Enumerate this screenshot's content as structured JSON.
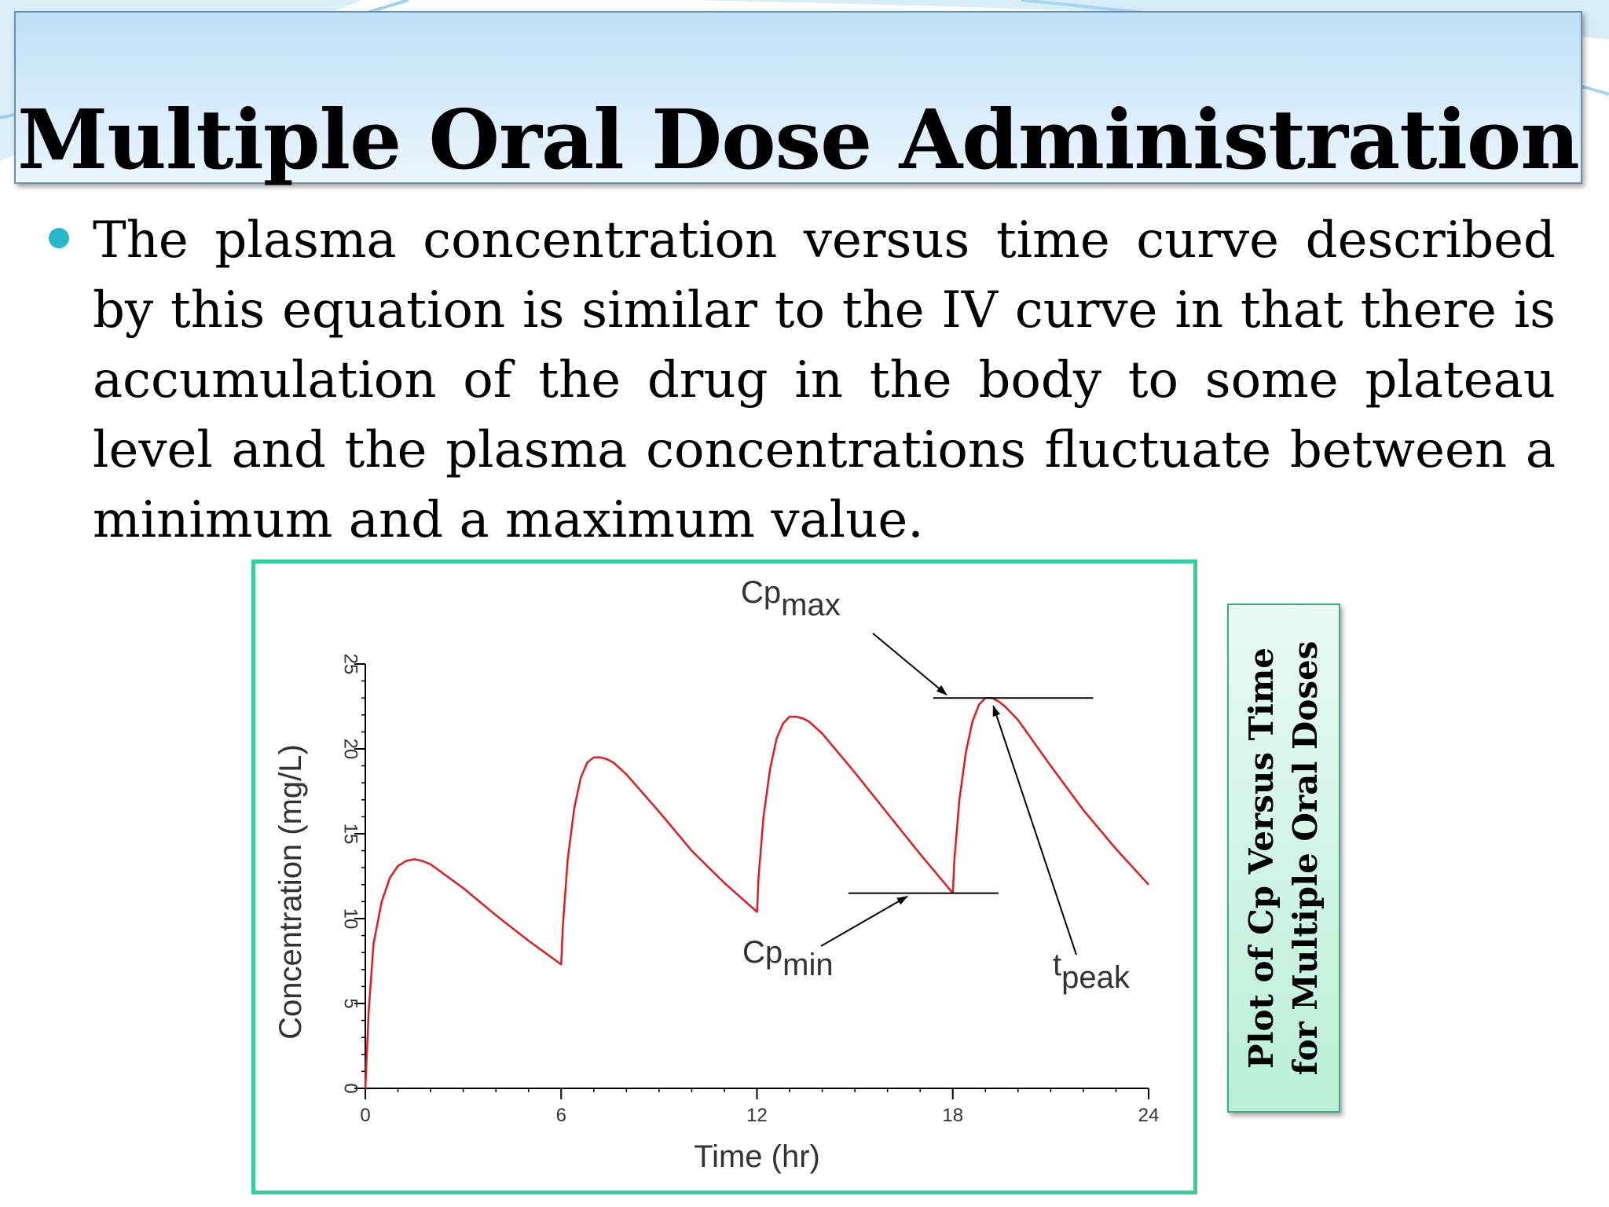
{
  "slide": {
    "title": "Multiple Oral Dose Administration",
    "bullet": "The plasma concentration versus time curve described by this equation is similar to the IV curve in that there is accumulation of the drug in the body to some plateau level and the plasma concentrations fluctuate between a minimum and a maximum value.",
    "caption_line1": "Plot of Cp Versus Time",
    "caption_line2": "for Multiple Oral Doses",
    "colors": {
      "bullet": "#27b9c9",
      "frame": "#2fd1a2",
      "curve": "#e41a1c"
    }
  },
  "chart_data": {
    "type": "line",
    "xlabel": "Time (hr)",
    "ylabel": "Concentration (mg/L)",
    "xlim": [
      0,
      24
    ],
    "ylim": [
      0,
      25
    ],
    "xticks": [
      0,
      6,
      12,
      18,
      24
    ],
    "yticks": [
      0,
      5,
      10,
      15,
      20,
      25
    ],
    "series": [
      {
        "x": [
          0,
          0.1,
          0.25,
          0.5,
          0.75,
          1.0,
          1.25,
          1.5,
          1.75,
          2,
          3,
          4,
          5,
          6,
          6.05,
          6.2,
          6.4,
          6.6,
          6.8,
          7.0,
          7.2,
          7.4,
          7.6,
          8,
          9,
          10,
          11,
          12,
          12.05,
          12.2,
          12.4,
          12.6,
          12.8,
          13.0,
          13.2,
          13.4,
          13.6,
          14,
          15,
          16,
          17,
          18,
          18.05,
          18.2,
          18.4,
          18.6,
          18.8,
          19.0,
          19.2,
          19.4,
          19.6,
          20,
          21,
          22,
          23,
          24
        ],
        "y": [
          0,
          4.5,
          8.5,
          11.0,
          12.4,
          13.1,
          13.4,
          13.5,
          13.4,
          13.2,
          11.8,
          10.2,
          8.7,
          7.3,
          9.5,
          13.5,
          16.5,
          18.3,
          19.2,
          19.5,
          19.5,
          19.4,
          19.2,
          18.5,
          16.3,
          14.0,
          12.1,
          10.4,
          12.5,
          16.0,
          18.8,
          20.6,
          21.5,
          21.9,
          21.9,
          21.8,
          21.6,
          20.9,
          18.6,
          16.2,
          13.8,
          11.5,
          13.5,
          17.0,
          19.8,
          21.6,
          22.6,
          23.0,
          23.0,
          22.8,
          22.5,
          21.7,
          19.0,
          16.4,
          14.1,
          12.0
        ]
      }
    ],
    "annotations": [
      {
        "label": "Cp",
        "subscript": "max",
        "value": 23
      },
      {
        "label": "Cp",
        "subscript": "min",
        "value": 11.5
      },
      {
        "label": "t",
        "subscript": "peak",
        "x": 19
      }
    ],
    "grid": false
  }
}
